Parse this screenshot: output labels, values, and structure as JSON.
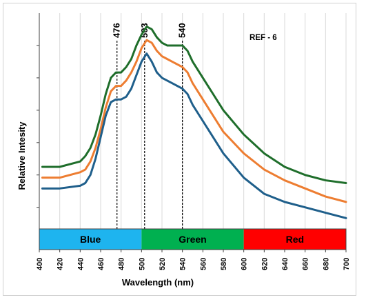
{
  "chart_data": {
    "type": "line",
    "annotation": "REF - 6",
    "xlabel": "Wavelength (nm)",
    "ylabel": "Relative Intesity",
    "xlim": [
      400,
      700
    ],
    "xticks": [
      "400",
      "420",
      "440",
      "460",
      "480",
      "500",
      "520",
      "540",
      "560",
      "580",
      "600",
      "620",
      "640",
      "660",
      "680",
      "700"
    ],
    "grid": "vertical",
    "legend": "none",
    "reference_lines": [
      {
        "label": "476",
        "x": 476
      },
      {
        "label": "503",
        "x": 503
      },
      {
        "label": "540",
        "x": 540
      }
    ],
    "color_bands": [
      {
        "label": "Blue",
        "x0": 400,
        "x1": 500,
        "color": "#1eb4ef"
      },
      {
        "label": "Green",
        "x0": 500,
        "x1": 600,
        "color": "#00b050"
      },
      {
        "label": "Red",
        "x0": 600,
        "x1": 700,
        "color": "#ff0000"
      }
    ],
    "series": [
      {
        "color": "#1f6e2b",
        "x": [
          403,
          420,
          440,
          445,
          450,
          455,
          460,
          465,
          470,
          475,
          480,
          485,
          490,
          495,
          500,
          505,
          510,
          515,
          520,
          525,
          530,
          535,
          540,
          545,
          550,
          560,
          570,
          580,
          600,
          620,
          640,
          660,
          680,
          700
        ],
        "values": [
          0.23,
          0.23,
          0.25,
          0.27,
          0.3,
          0.35,
          0.42,
          0.5,
          0.56,
          0.58,
          0.58,
          0.6,
          0.63,
          0.68,
          0.72,
          0.75,
          0.74,
          0.71,
          0.69,
          0.68,
          0.68,
          0.68,
          0.68,
          0.66,
          0.62,
          0.56,
          0.5,
          0.44,
          0.35,
          0.28,
          0.23,
          0.2,
          0.18,
          0.17
        ]
      },
      {
        "color": "#ed7d31",
        "x": [
          403,
          420,
          440,
          445,
          450,
          455,
          460,
          465,
          470,
          475,
          480,
          485,
          490,
          495,
          500,
          505,
          510,
          515,
          520,
          525,
          530,
          535,
          540,
          545,
          550,
          560,
          570,
          580,
          600,
          620,
          640,
          660,
          680,
          700
        ],
        "values": [
          0.19,
          0.19,
          0.21,
          0.22,
          0.25,
          0.3,
          0.37,
          0.45,
          0.51,
          0.53,
          0.53,
          0.55,
          0.58,
          0.62,
          0.67,
          0.7,
          0.69,
          0.66,
          0.64,
          0.63,
          0.62,
          0.61,
          0.6,
          0.58,
          0.54,
          0.48,
          0.42,
          0.36,
          0.28,
          0.22,
          0.18,
          0.15,
          0.12,
          0.1
        ]
      },
      {
        "color": "#1f5f8b",
        "x": [
          403,
          420,
          440,
          445,
          450,
          455,
          460,
          465,
          470,
          475,
          480,
          485,
          490,
          495,
          500,
          505,
          510,
          515,
          520,
          525,
          530,
          535,
          540,
          545,
          550,
          560,
          570,
          580,
          600,
          620,
          640,
          660,
          680,
          700
        ],
        "values": [
          0.15,
          0.15,
          0.16,
          0.17,
          0.2,
          0.26,
          0.34,
          0.42,
          0.47,
          0.48,
          0.48,
          0.49,
          0.52,
          0.57,
          0.62,
          0.65,
          0.62,
          0.58,
          0.56,
          0.55,
          0.54,
          0.53,
          0.52,
          0.5,
          0.46,
          0.4,
          0.34,
          0.28,
          0.19,
          0.13,
          0.1,
          0.08,
          0.06,
          0.04
        ]
      }
    ]
  }
}
